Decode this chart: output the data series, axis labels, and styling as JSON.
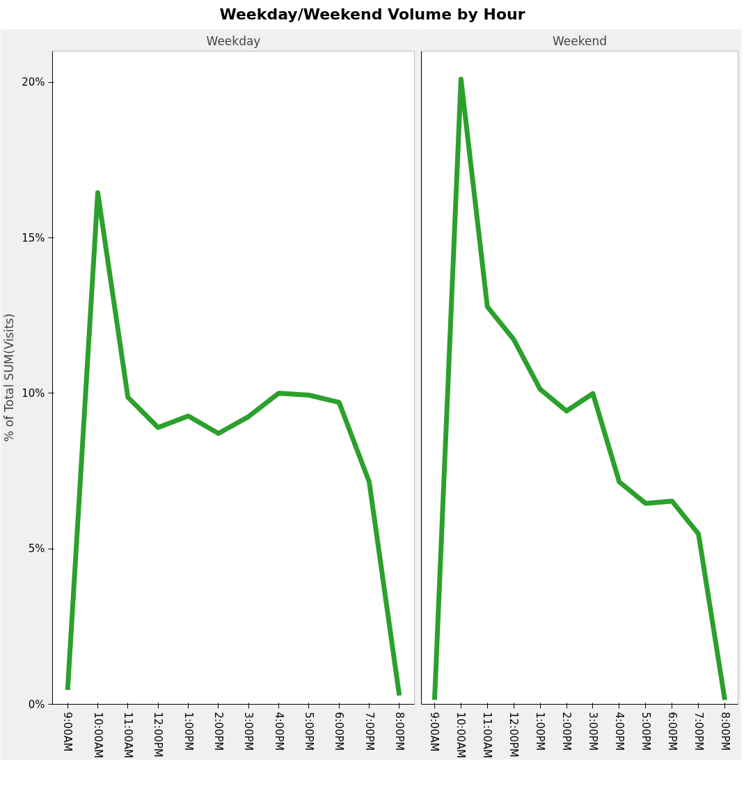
{
  "chart_data": [
    {
      "type": "line",
      "title": "Weekday/Weekend Volume by Hour",
      "subtitle": "Weekday",
      "ylabel": "% of Total SUM(Visits)",
      "categories": [
        "9:00AM",
        "10:00AM",
        "11:00AM",
        "12:00PM",
        "1:00PM",
        "2:00PM",
        "3:00PM",
        "4:00PM",
        "5:00PM",
        "6:00PM",
        "7:00PM",
        "8:00PM"
      ],
      "series": [
        {
          "color": "#2ca02c",
          "values": [
            0.46,
            16.45,
            9.87,
            8.9,
            9.27,
            8.71,
            9.25,
            10.0,
            9.94,
            9.71,
            7.15,
            0.28
          ]
        }
      ],
      "ylim": [
        0,
        21
      ],
      "yticks": [
        {
          "value": 0,
          "label": "0%"
        },
        {
          "value": 5,
          "label": "5%"
        },
        {
          "value": 10,
          "label": "10%"
        },
        {
          "value": 15,
          "label": "15%"
        },
        {
          "value": 20,
          "label": "20%"
        }
      ],
      "grid": false,
      "line_style": "solid"
    },
    {
      "type": "line",
      "subtitle": "Weekend",
      "categories": [
        "9:00AM",
        "10:00AM",
        "11:00AM",
        "12:00PM",
        "1:00PM",
        "2:00PM",
        "3:00PM",
        "4:00PM",
        "5:00PM",
        "6:00PM",
        "7:00PM",
        "8:00PM"
      ],
      "series": [
        {
          "color": "#2ca02c",
          "values": [
            0.14,
            20.1,
            12.78,
            11.73,
            10.13,
            9.43,
            9.99,
            7.15,
            6.46,
            6.53,
            5.48,
            0.14
          ]
        }
      ],
      "ylim": [
        0,
        21
      ],
      "tick_labels": "x",
      "grid": false,
      "line_style": "solid"
    }
  ]
}
